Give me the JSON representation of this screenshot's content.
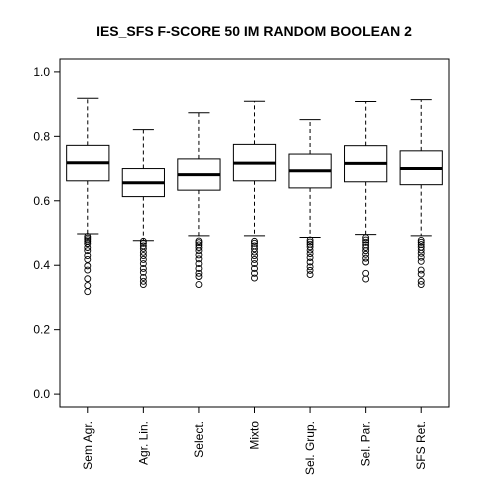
{
  "chart_data": {
    "type": "boxplot",
    "title": "IES_SFS F-SCORE 50 IM RANDOM BOOLEAN 2",
    "xlabel": "",
    "ylabel": "",
    "ylim": [
      -0.04,
      1.04
    ],
    "yticks": [
      "0.0",
      "0.2",
      "0.4",
      "0.6",
      "0.8",
      "1.0"
    ],
    "categories": [
      "Sem Agr.",
      "Agr. Lin.",
      "Select.",
      "Mixto",
      "Sel. Grup.",
      "Sel. Par.",
      "SFS Ret."
    ],
    "boxes": [
      {
        "min": 0.497,
        "q1": 0.662,
        "median": 0.718,
        "q3": 0.772,
        "max": 0.918,
        "outliers": [
          0.489,
          0.484,
          0.479,
          0.474,
          0.467,
          0.455,
          0.445,
          0.43,
          0.418,
          0.398,
          0.385,
          0.358,
          0.337,
          0.318
        ]
      },
      {
        "min": 0.476,
        "q1": 0.613,
        "median": 0.656,
        "q3": 0.7,
        "max": 0.821,
        "outliers": [
          0.474,
          0.468,
          0.46,
          0.452,
          0.44,
          0.43,
          0.418,
          0.405,
          0.39,
          0.378,
          0.362,
          0.35,
          0.34
        ]
      },
      {
        "min": 0.491,
        "q1": 0.633,
        "median": 0.681,
        "q3": 0.73,
        "max": 0.873,
        "outliers": [
          0.475,
          0.47,
          0.463,
          0.455,
          0.445,
          0.432,
          0.42,
          0.405,
          0.39,
          0.375,
          0.365,
          0.34
        ]
      },
      {
        "min": 0.491,
        "q1": 0.662,
        "median": 0.717,
        "q3": 0.775,
        "max": 0.909,
        "outliers": [
          0.474,
          0.468,
          0.46,
          0.451,
          0.441,
          0.43,
          0.418,
          0.405,
          0.39,
          0.375,
          0.36
        ]
      },
      {
        "min": 0.486,
        "q1": 0.64,
        "median": 0.693,
        "q3": 0.745,
        "max": 0.852,
        "outliers": [
          0.478,
          0.472,
          0.465,
          0.457,
          0.447,
          0.436,
          0.424,
          0.41,
          0.395,
          0.384,
          0.371
        ]
      },
      {
        "min": 0.495,
        "q1": 0.659,
        "median": 0.716,
        "q3": 0.771,
        "max": 0.908,
        "outliers": [
          0.485,
          0.478,
          0.471,
          0.463,
          0.455,
          0.445,
          0.434,
          0.422,
          0.41,
          0.375,
          0.357
        ]
      },
      {
        "min": 0.491,
        "q1": 0.65,
        "median": 0.7,
        "q3": 0.755,
        "max": 0.914,
        "outliers": [
          0.477,
          0.471,
          0.464,
          0.456,
          0.447,
          0.437,
          0.425,
          0.412,
          0.385,
          0.372,
          0.35,
          0.34
        ]
      }
    ],
    "grid": false,
    "legend": "none"
  }
}
